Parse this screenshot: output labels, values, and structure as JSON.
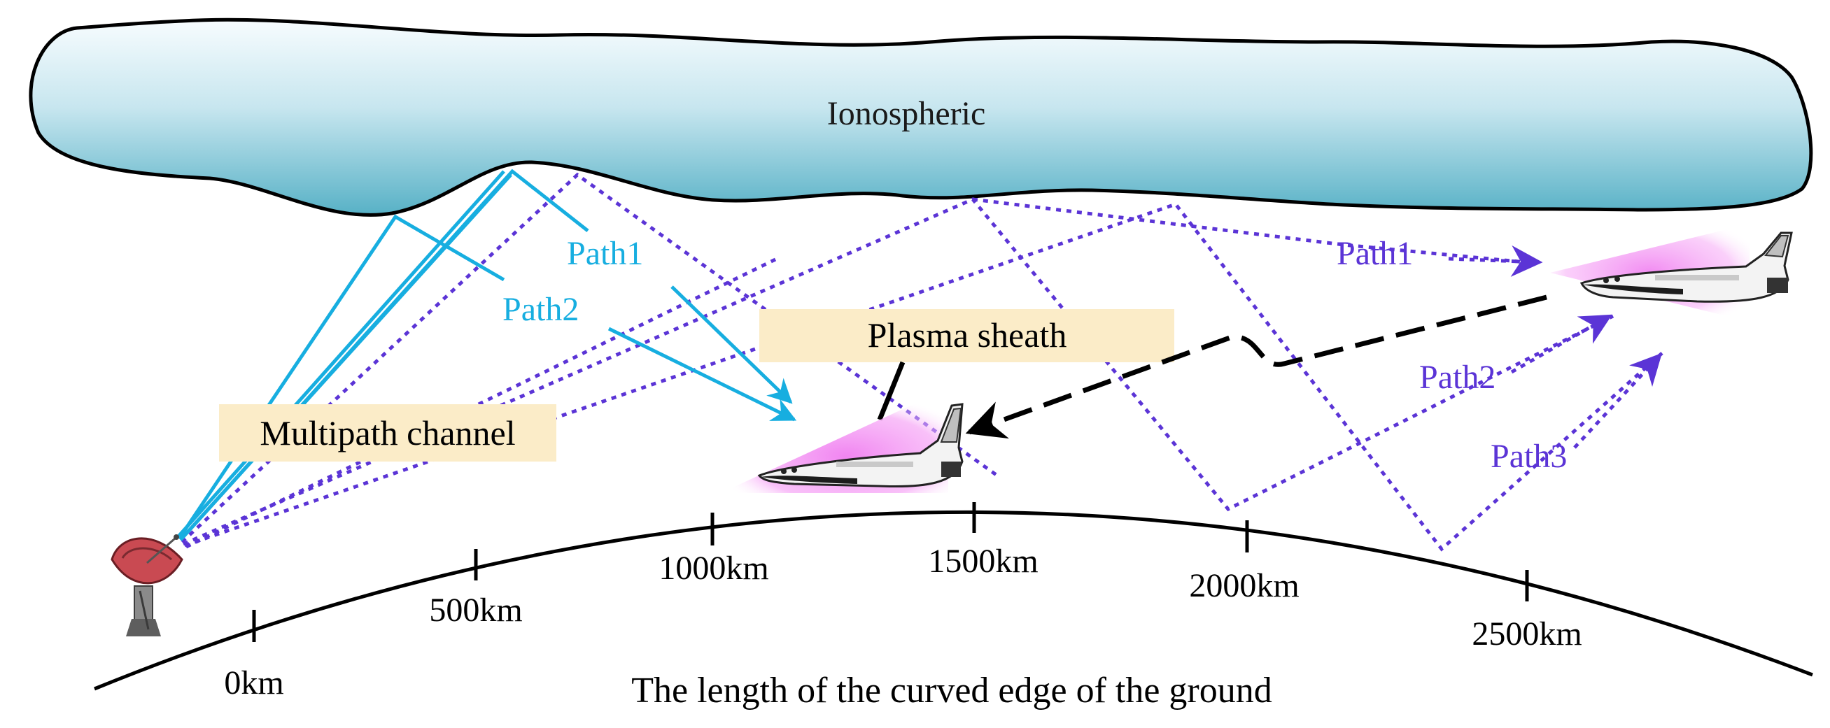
{
  "ionosphere": {
    "label": "Ionospheric"
  },
  "plasma_sheath": {
    "label": "Plasma sheath"
  },
  "multipath": {
    "label": "Multipath channel"
  },
  "near_paths": {
    "path1": "Path1",
    "path2": "Path2"
  },
  "far_paths": {
    "path1": "Path1",
    "path2": "Path2",
    "path3": "Path3"
  },
  "ground": {
    "caption": "The length of the curved edge of the ground",
    "ticks": [
      "0km",
      "500km",
      "1000km",
      "1500km",
      "2000km",
      "2500km"
    ]
  },
  "colors": {
    "near_path": "#17aee0",
    "far_path": "#5b34d6",
    "ionosphere_top": "#f4fbfd",
    "ionosphere_bottom": "#58b3c8",
    "label_box": "#fbecc8",
    "plasma_glow": "#f08cf0"
  },
  "icons": [
    "radar-dish-icon",
    "space-shuttle-icon"
  ]
}
